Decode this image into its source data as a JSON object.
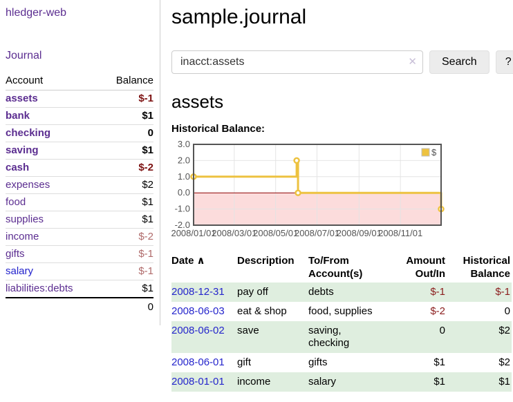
{
  "app": {
    "brand": "hledger-web",
    "nav_journal": "Journal"
  },
  "colors": {
    "link_purple": "#5b2d90",
    "link_blue": "#2222cc",
    "negative_strong": "#7d1212",
    "negative_soft": "#b06b6b",
    "register_negative": "#8b1d1d",
    "row_green": "#dfeedf",
    "series_gold": "#edc240"
  },
  "sidebar": {
    "headers": {
      "account": "Account",
      "balance": "Balance"
    },
    "accounts": [
      {
        "name": "assets",
        "balance": "$-1"
      },
      {
        "name": "bank",
        "balance": "$1"
      },
      {
        "name": "checking",
        "balance": "0"
      },
      {
        "name": "saving",
        "balance": "$1"
      },
      {
        "name": "cash",
        "balance": "$-2"
      },
      {
        "name": "expenses",
        "balance": "$2"
      },
      {
        "name": "food",
        "balance": "$1"
      },
      {
        "name": "supplies",
        "balance": "$1"
      },
      {
        "name": "income",
        "balance": "$-2"
      },
      {
        "name": "gifts",
        "balance": "$-1"
      },
      {
        "name": "salary",
        "balance": "$-1"
      },
      {
        "name": "liabilities:debts",
        "balance": "$1"
      }
    ],
    "total": "0"
  },
  "main": {
    "title": "sample.journal",
    "search": {
      "value": "inacct:assets",
      "clear_icon": "✕",
      "search_button": "Search",
      "help_button": "?"
    },
    "account_heading": "assets",
    "chart_label": "Historical Balance:"
  },
  "register": {
    "headers": [
      "Date",
      "Description",
      "To/From Account(s)",
      "Amount Out/In",
      "Historical Balance"
    ],
    "sort_indicator": "∧",
    "rows": [
      {
        "date": "2008-12-31",
        "description": "pay off",
        "tofrom": "debts",
        "amount": "$-1",
        "balance": "$-1"
      },
      {
        "date": "2008-06-03",
        "description": "eat & shop",
        "tofrom": "food, supplies",
        "amount": "$-2",
        "balance": "0"
      },
      {
        "date": "2008-06-02",
        "description": "save",
        "tofrom": "saving, checking",
        "amount": "0",
        "balance": "$2"
      },
      {
        "date": "2008-06-01",
        "description": "gift",
        "tofrom": "gifts",
        "amount": "$1",
        "balance": "$2"
      },
      {
        "date": "2008-01-01",
        "description": "income",
        "tofrom": "salary",
        "amount": "$1",
        "balance": "$1"
      }
    ]
  },
  "chart_data": {
    "type": "line",
    "title": "Historical Balance:",
    "legend": [
      {
        "label": "$",
        "color": "#edc240"
      }
    ],
    "legend_position": "top-right",
    "grid": true,
    "ylim": [
      -2.0,
      3.0
    ],
    "yticks": [
      {
        "label": "3.0",
        "value": 3
      },
      {
        "label": "2.0",
        "value": 2
      },
      {
        "label": "1.0",
        "value": 1
      },
      {
        "label": "0.0",
        "value": 0
      },
      {
        "label": "-1.0",
        "value": -1
      },
      {
        "label": "-2.0",
        "value": -2
      }
    ],
    "xlim_days": [
      0,
      365
    ],
    "xticks": [
      {
        "label": "2008/01/01",
        "day": 0
      },
      {
        "label": "2008/03/01",
        "day": 60
      },
      {
        "label": "2008/05/01",
        "day": 121
      },
      {
        "label": "2008/07/01",
        "day": 182
      },
      {
        "label": "2008/09/01",
        "day": 244
      },
      {
        "label": "2008/11/01",
        "day": 305
      }
    ],
    "series": [
      {
        "name": "$",
        "color": "#edc240",
        "interpolation": "step-after",
        "points": [
          {
            "date": "2008-01-01",
            "day": 0,
            "value": 1
          },
          {
            "date": "2008-06-01",
            "day": 152,
            "value": 2
          },
          {
            "date": "2008-06-03",
            "day": 154,
            "value": 0
          },
          {
            "date": "2008-12-31",
            "day": 365,
            "value": -1
          }
        ]
      }
    ],
    "negative_region_color": "#fcdcdc",
    "zero_line_color": "#8b0000",
    "gridline_color": "#e4e4e4",
    "border_color": "#545454"
  }
}
